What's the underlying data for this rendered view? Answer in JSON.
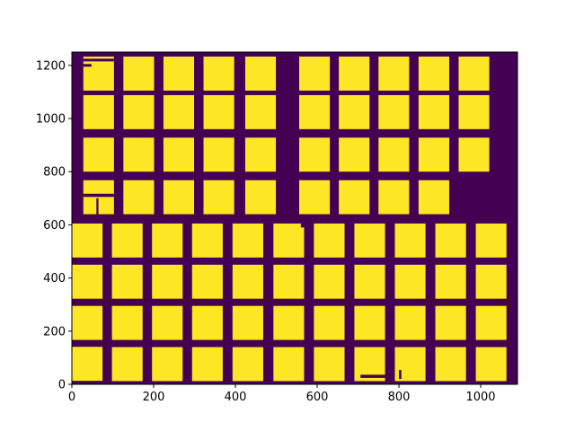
{
  "chart_data": {
    "type": "heatmap",
    "title": "",
    "xlabel": "",
    "ylabel": "",
    "xlim": [
      0,
      1090
    ],
    "ylim": [
      0,
      1250
    ],
    "xticks": [
      0,
      200,
      400,
      600,
      800,
      1000
    ],
    "yticks": [
      0,
      200,
      400,
      600,
      800,
      1000,
      1200
    ],
    "grid": false,
    "legend": "none",
    "colors": {
      "background": "#440154",
      "foreground": "#fde725"
    },
    "description_values": "binary mask: 1 = filled cell (yellow), 0 = background (purple)",
    "cells": [
      [
        0,
        13,
        75,
        128
      ],
      [
        98,
        12,
        75,
        128
      ],
      [
        196,
        12,
        75,
        128
      ],
      [
        294,
        12,
        75,
        128
      ],
      [
        393,
        12,
        75,
        128
      ],
      [
        493,
        12,
        75,
        128
      ],
      [
        592,
        12,
        75,
        128
      ],
      [
        691,
        12,
        75,
        128
      ],
      [
        790,
        12,
        75,
        128
      ],
      [
        889,
        12,
        75,
        128
      ],
      [
        988,
        12,
        75,
        128
      ],
      [
        0,
        167,
        75,
        128
      ],
      [
        98,
        167,
        75,
        128
      ],
      [
        196,
        167,
        75,
        128
      ],
      [
        294,
        167,
        75,
        128
      ],
      [
        393,
        167,
        75,
        128
      ],
      [
        493,
        167,
        75,
        128
      ],
      [
        592,
        167,
        75,
        128
      ],
      [
        691,
        167,
        75,
        128
      ],
      [
        790,
        167,
        75,
        128
      ],
      [
        889,
        167,
        75,
        128
      ],
      [
        988,
        167,
        75,
        128
      ],
      [
        0,
        322,
        75,
        128
      ],
      [
        98,
        322,
        75,
        128
      ],
      [
        196,
        322,
        75,
        128
      ],
      [
        294,
        322,
        75,
        128
      ],
      [
        393,
        322,
        75,
        128
      ],
      [
        493,
        322,
        75,
        128
      ],
      [
        592,
        322,
        75,
        128
      ],
      [
        691,
        322,
        75,
        128
      ],
      [
        790,
        322,
        75,
        128
      ],
      [
        889,
        322,
        75,
        128
      ],
      [
        988,
        322,
        75,
        128
      ],
      [
        0,
        477,
        75,
        128
      ],
      [
        98,
        477,
        75,
        128
      ],
      [
        196,
        477,
        75,
        128
      ],
      [
        294,
        477,
        75,
        128
      ],
      [
        393,
        477,
        75,
        128
      ],
      [
        493,
        477,
        75,
        128
      ],
      [
        592,
        477,
        75,
        128
      ],
      [
        691,
        477,
        75,
        128
      ],
      [
        790,
        477,
        75,
        128
      ],
      [
        889,
        477,
        75,
        128
      ],
      [
        988,
        477,
        75,
        128
      ],
      [
        28,
        640,
        75,
        128
      ],
      [
        126,
        640,
        75,
        128
      ],
      [
        224,
        640,
        75,
        128
      ],
      [
        322,
        640,
        75,
        128
      ],
      [
        424,
        640,
        75,
        128
      ],
      [
        556,
        640,
        75,
        128
      ],
      [
        653,
        640,
        75,
        128
      ],
      [
        750,
        640,
        75,
        128
      ],
      [
        848,
        640,
        75,
        128
      ],
      [
        28,
        800,
        75,
        128
      ],
      [
        126,
        800,
        75,
        128
      ],
      [
        224,
        800,
        75,
        128
      ],
      [
        322,
        800,
        75,
        128
      ],
      [
        424,
        800,
        75,
        128
      ],
      [
        556,
        800,
        75,
        128
      ],
      [
        653,
        800,
        75,
        128
      ],
      [
        750,
        800,
        75,
        128
      ],
      [
        848,
        800,
        75,
        128
      ],
      [
        946,
        800,
        75,
        128
      ],
      [
        28,
        960,
        75,
        128
      ],
      [
        126,
        960,
        75,
        128
      ],
      [
        224,
        960,
        75,
        128
      ],
      [
        322,
        960,
        75,
        128
      ],
      [
        424,
        960,
        75,
        128
      ],
      [
        556,
        960,
        75,
        128
      ],
      [
        653,
        960,
        75,
        128
      ],
      [
        750,
        960,
        75,
        128
      ],
      [
        848,
        960,
        75,
        128
      ],
      [
        946,
        960,
        75,
        128
      ],
      [
        28,
        1105,
        75,
        128
      ],
      [
        126,
        1105,
        75,
        128
      ],
      [
        224,
        1105,
        75,
        128
      ],
      [
        322,
        1105,
        75,
        128
      ],
      [
        424,
        1105,
        75,
        128
      ],
      [
        556,
        1105,
        75,
        128
      ],
      [
        653,
        1105,
        75,
        128
      ],
      [
        750,
        1105,
        75,
        128
      ],
      [
        848,
        1105,
        75,
        128
      ],
      [
        946,
        1105,
        75,
        128
      ]
    ],
    "holes": [
      [
        28,
        1215,
        75,
        10
      ],
      [
        28,
        705,
        75,
        12
      ],
      [
        28,
        1195,
        20,
        10
      ],
      [
        706,
        24,
        82,
        12
      ],
      [
        800,
        20,
        6,
        34
      ],
      [
        60,
        640,
        5,
        60
      ],
      [
        560,
        590,
        9,
        50
      ]
    ]
  }
}
